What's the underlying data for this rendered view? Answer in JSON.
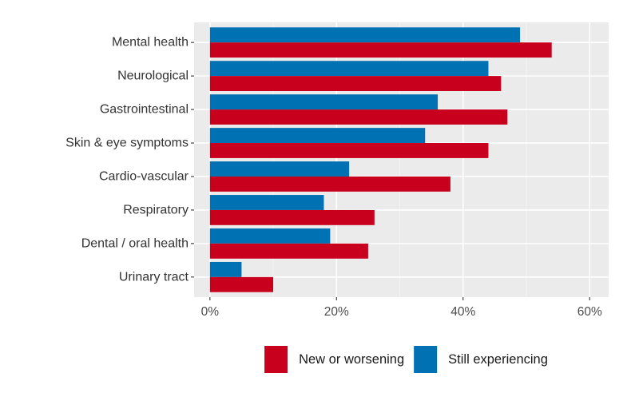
{
  "chart_data": {
    "type": "bar",
    "orientation": "horizontal",
    "categories": [
      "Mental health",
      "Neurological",
      "Gastrointestinal",
      "Skin & eye symptoms",
      "Cardio-vascular",
      "Respiratory",
      "Dental / oral health",
      "Urinary tract"
    ],
    "series": [
      {
        "name": "Still experiencing",
        "color": "#0071b3",
        "values": [
          49,
          44,
          36,
          34,
          22,
          18,
          19,
          5
        ]
      },
      {
        "name": "New or worsening",
        "color": "#c8001e",
        "values": [
          54,
          46,
          47,
          44,
          38,
          26,
          25,
          10
        ]
      }
    ],
    "xlim": [
      -2.5,
      63
    ],
    "xticks": [
      0,
      20,
      40,
      60
    ],
    "xtick_labels": [
      "0%",
      "20%",
      "40%",
      "60%"
    ],
    "grid": true,
    "legend": {
      "position": "bottom",
      "entries": [
        {
          "name": "New or worsening",
          "color": "#c8001e"
        },
        {
          "name": "Still experiencing",
          "color": "#0071b3"
        }
      ]
    },
    "title": "",
    "xlabel": "",
    "ylabel": ""
  }
}
